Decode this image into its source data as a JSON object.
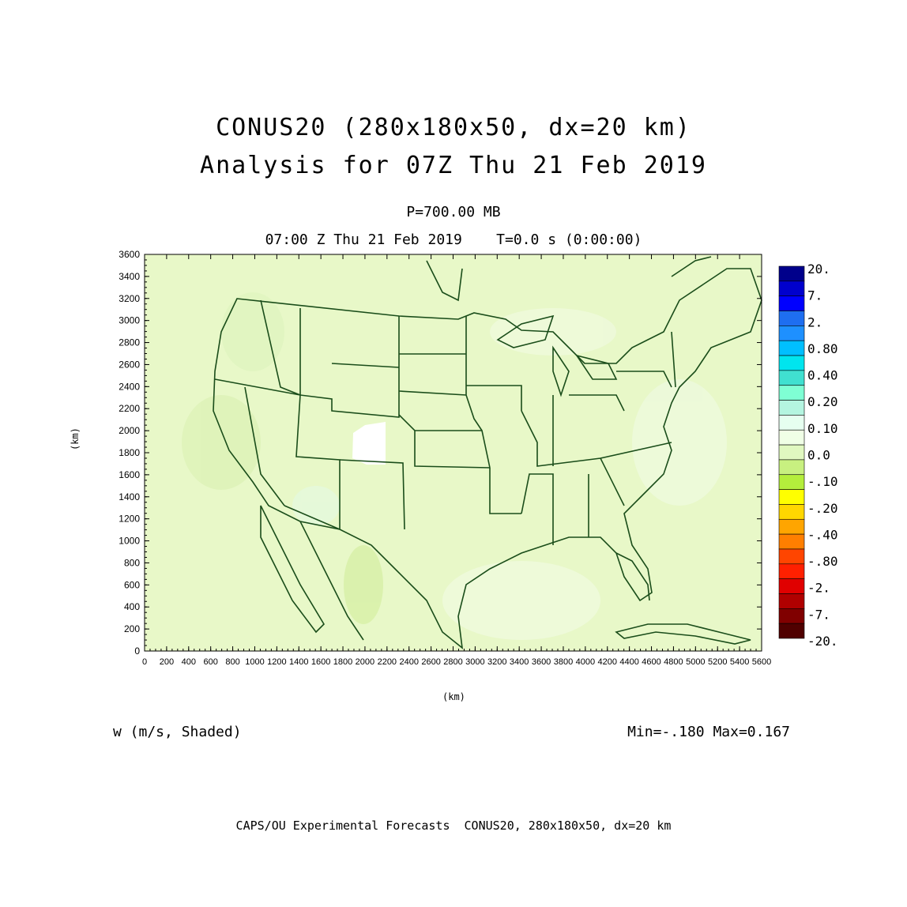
{
  "titles": {
    "line1": "CONUS20 (280x180x50, dx=20 km)",
    "line2": "Analysis for 07Z Thu 21 Feb 2019",
    "level": "P=700.00 MB",
    "time": "07:00 Z Thu 21 Feb 2019    T=0.0 s (0:00:00)"
  },
  "axes": {
    "x_label": "(km)",
    "y_label": "(km)",
    "x_range": [
      0,
      5600
    ],
    "y_range": [
      0,
      3600
    ],
    "x_ticks": [
      "0",
      "200",
      "400",
      "600",
      "800",
      "1000",
      "1200",
      "1400",
      "1600",
      "1800",
      "2000",
      "2200",
      "2400",
      "2600",
      "2800",
      "3000",
      "3200",
      "3400",
      "3600",
      "3800",
      "4000",
      "4200",
      "4400",
      "4600",
      "4800",
      "5000",
      "5200",
      "5400",
      "5600"
    ],
    "y_ticks": [
      "0",
      "200",
      "400",
      "600",
      "800",
      "1000",
      "1200",
      "1400",
      "1600",
      "1800",
      "2000",
      "2200",
      "2400",
      "2600",
      "2800",
      "3000",
      "3200",
      "3400",
      "3600"
    ]
  },
  "colorbar": {
    "labels": [
      "20.",
      "7.",
      "2.",
      "0.80",
      "0.40",
      "0.20",
      "0.10",
      "0.0",
      "-.10",
      "-.20",
      "-.40",
      "-.80",
      "-2.",
      "-7.",
      "-20."
    ],
    "colors": [
      "#00008b",
      "#0000cd",
      "#0000ff",
      "#1e6ef0",
      "#1e90ff",
      "#00bfff",
      "#00e5ee",
      "#40e0d0",
      "#7fffd4",
      "#b4f5e0",
      "#e6fff0",
      "#f0ffe6",
      "#e0f8c0",
      "#c8f080",
      "#b4ee3c",
      "#ffff00",
      "#ffd700",
      "#ffa500",
      "#ff7f00",
      "#ff4500",
      "#ff2000",
      "#e00000",
      "#b00000",
      "#800000",
      "#500000"
    ]
  },
  "field": {
    "name": "w (m/s, Shaded)",
    "minmax": "Min=-.180 Max=0.167",
    "background_color": "#e8f8c8",
    "outline_color": "#1a4d1a"
  },
  "footer": "CAPS/OU Experimental Forecasts  CONUS20, 280x180x50, dx=20 km"
}
